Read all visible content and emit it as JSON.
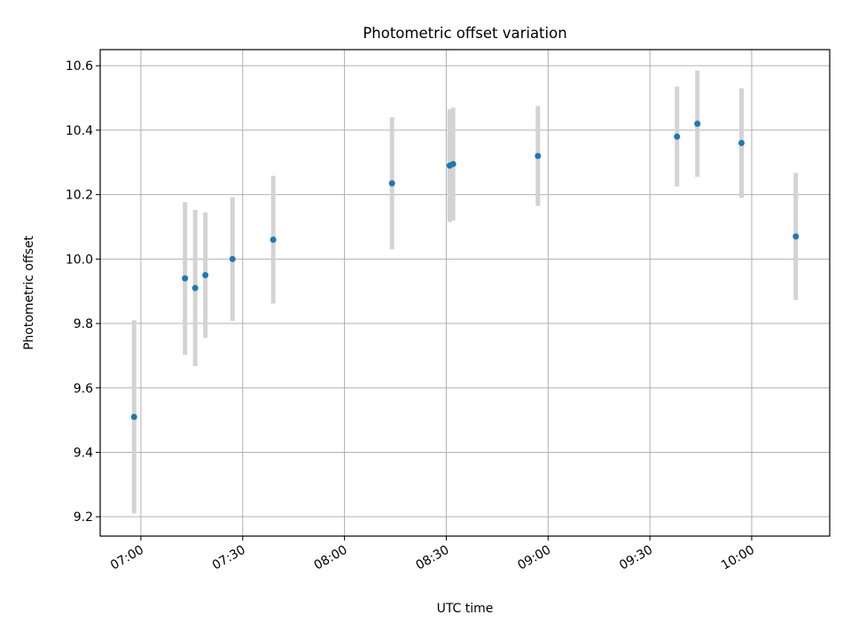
{
  "chart_data": {
    "type": "scatter",
    "title": "Photometric offset variation",
    "xlabel": "UTC time",
    "ylabel": "Photometric offset",
    "x_ticks": [
      "07:00",
      "07:30",
      "08:00",
      "08:30",
      "09:00",
      "09:30",
      "10:00"
    ],
    "y_ticks": [
      "9.2",
      "9.4",
      "9.6",
      "9.8",
      "10.0",
      "10.2",
      "10.4",
      "10.6"
    ],
    "xlim": [
      "06:48",
      "10:23"
    ],
    "ylim": [
      9.14,
      10.65
    ],
    "grid": true,
    "point_color": "#1f77b4",
    "errorbar_color": "#d3d3d3",
    "points": [
      {
        "x": "06:58",
        "y": 9.51,
        "err": 0.3
      },
      {
        "x": "07:13",
        "y": 9.94,
        "err": 0.237
      },
      {
        "x": "07:16",
        "y": 9.91,
        "err": 0.242
      },
      {
        "x": "07:19",
        "y": 9.95,
        "err": 0.195
      },
      {
        "x": "07:27",
        "y": 10.0,
        "err": 0.192
      },
      {
        "x": "07:39",
        "y": 10.06,
        "err": 0.198
      },
      {
        "x": "08:14",
        "y": 10.235,
        "err": 0.205
      },
      {
        "x": "08:31",
        "y": 10.29,
        "err": 0.175
      },
      {
        "x": "08:32",
        "y": 10.295,
        "err": 0.175
      },
      {
        "x": "08:57",
        "y": 10.32,
        "err": 0.155
      },
      {
        "x": "09:38",
        "y": 10.38,
        "err": 0.155
      },
      {
        "x": "09:44",
        "y": 10.42,
        "err": 0.165
      },
      {
        "x": "09:57",
        "y": 10.36,
        "err": 0.17
      },
      {
        "x": "10:13",
        "y": 10.07,
        "err": 0.197
      }
    ]
  }
}
